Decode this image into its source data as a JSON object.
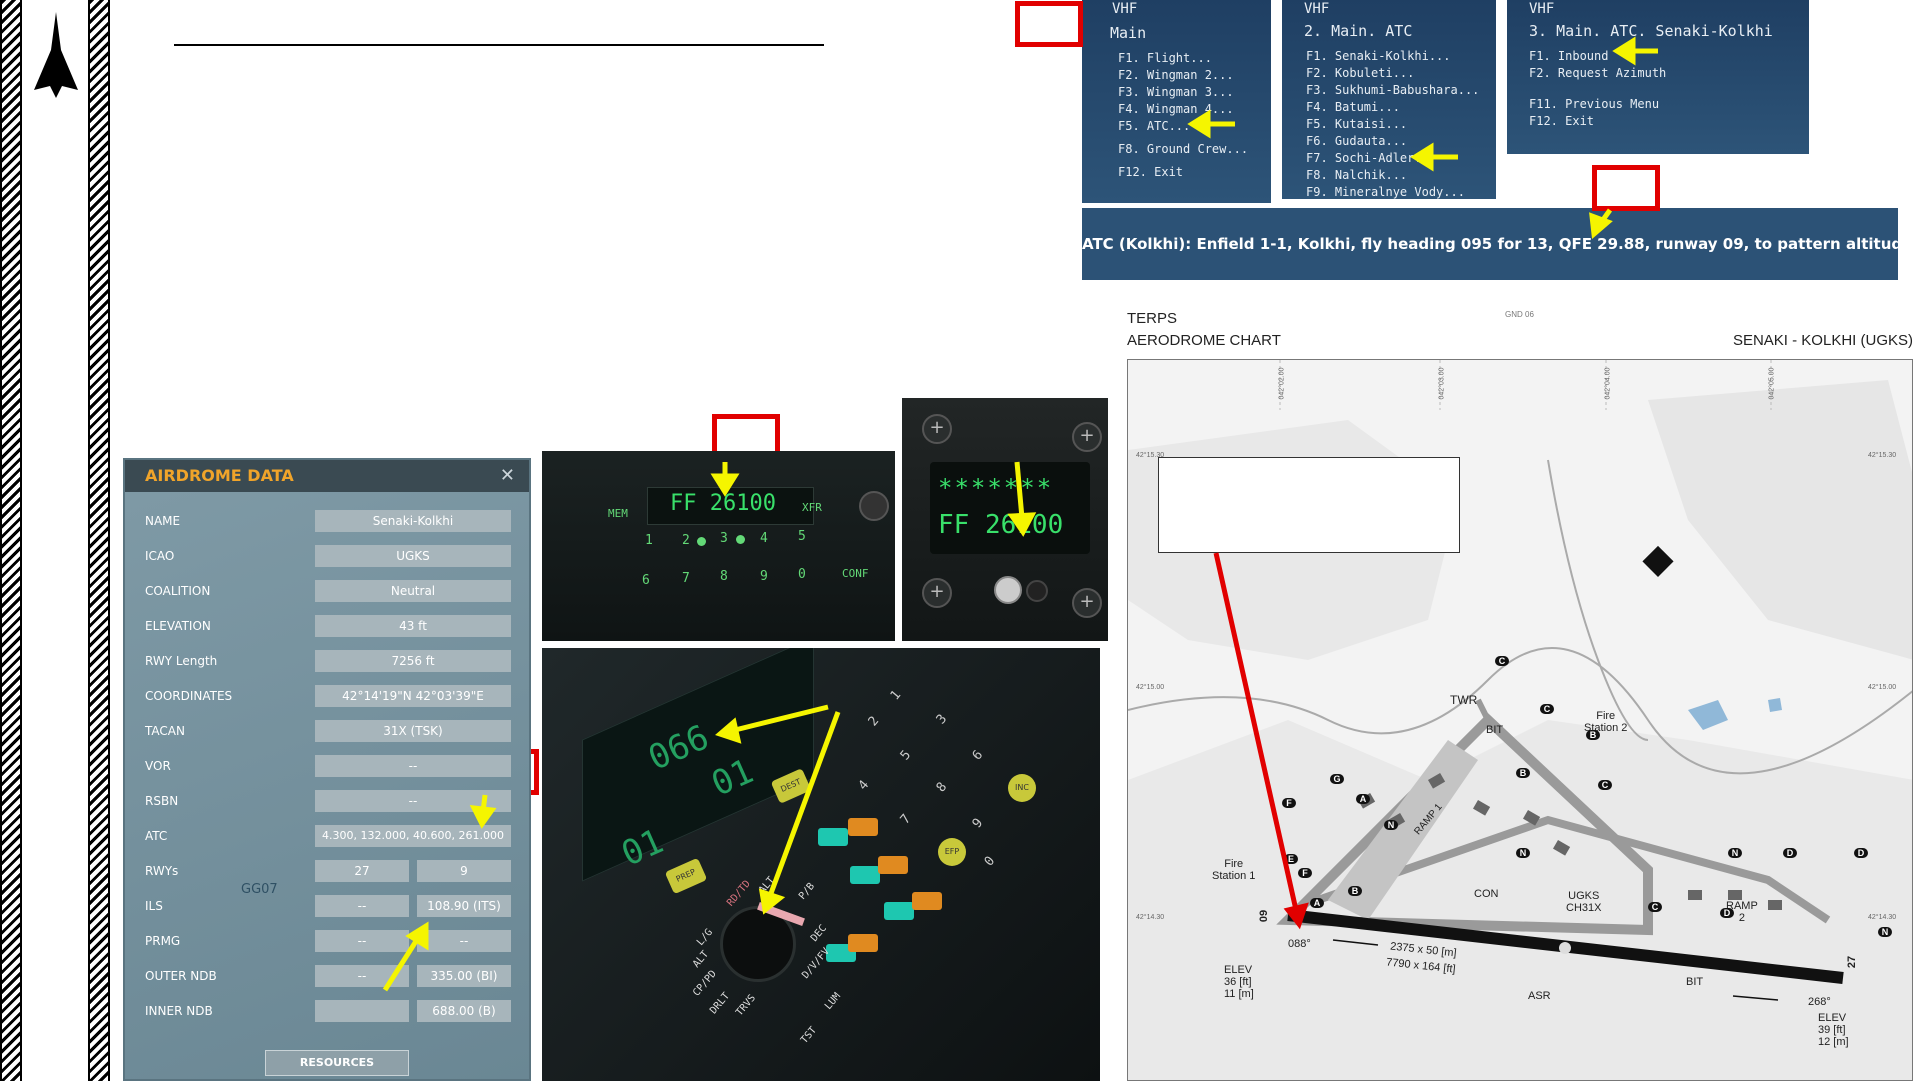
{
  "vhf_main": {
    "title": "VHF",
    "subtitle": "Main",
    "items": [
      "F1. Flight...",
      "F2. Wingman 2...",
      "F3. Wingman 3...",
      "F4. Wingman 4...",
      "F5. ATC...",
      "F8. Ground Crew...",
      "F12. Exit"
    ]
  },
  "vhf_atc": {
    "title": "VHF",
    "subtitle": "2. Main. ATC",
    "items": [
      "F1. Senaki-Kolkhi...",
      "F2. Kobuleti...",
      "F3. Sukhumi-Babushara...",
      "F4. Batumi...",
      "F5. Kutaisi...",
      "F6. Gudauta...",
      "F7. Sochi-Adler...",
      "F8. Nalchik...",
      "F9. Mineralnye Vody..."
    ]
  },
  "vhf_senaki": {
    "title": "VHF",
    "subtitle": "3. Main. ATC. Senaki-Kolkhi",
    "items": [
      "F1. Inbound",
      "F2. Request Azimuth",
      "F11. Previous Menu",
      "F12. Exit"
    ]
  },
  "atc_message": "ATC (Kolkhi): Enfield 1-1, Kolkhi, fly heading 095 for 13, QFE 29.88, runway 09, to pattern altitude",
  "airdrome": {
    "title": "AIRDROME DATA",
    "close": "✕",
    "rows": [
      {
        "label": "NAME",
        "value": "Senaki-Kolkhi"
      },
      {
        "label": "ICAO",
        "value": "UGKS"
      },
      {
        "label": "COALITION",
        "value": "Neutral"
      },
      {
        "label": "ELEVATION",
        "value": "43 ft"
      },
      {
        "label": "RWY Length",
        "value": "7256 ft"
      },
      {
        "label": "COORDINATES",
        "value": "42°14'19\"N 42°03'39\"E"
      },
      {
        "label": "TACAN",
        "value": "31X (TSK)"
      },
      {
        "label": "VOR",
        "value": "--"
      },
      {
        "label": "RSBN",
        "value": "--"
      },
      {
        "label": "ATC",
        "value": "4.300, 132.000, 40.600, 261.000"
      }
    ],
    "split_rows": [
      {
        "label": "RWYs",
        "left": "27",
        "right": "9"
      },
      {
        "label": "ILS",
        "left": "--",
        "right": "108.90 (ITS)"
      },
      {
        "label": "PRMG",
        "left": "--",
        "right": "--"
      },
      {
        "label": "OUTER NDB",
        "left": "--",
        "right": "335.00 (BI)"
      },
      {
        "label": "INNER NDB",
        "left": "",
        "right": "688.00 (B)"
      }
    ],
    "grid_label": "GG07",
    "resources_button": "RESOURCES"
  },
  "ufc_panel": {
    "display": "FF 26100",
    "mem": "MEM",
    "xfr": "XFR",
    "conf": "CONF",
    "keys_top": [
      "1",
      "2",
      "3",
      "4",
      "5"
    ],
    "keys_bottom": [
      "6",
      "7",
      "8",
      "9",
      "0"
    ]
  },
  "display_panel": {
    "line1": "*******",
    "line2": "FF 26100"
  },
  "nav_panel": {
    "big_value": "066",
    "small_value": "01",
    "lower_value": "01",
    "dest": "DEST",
    "prep": "PREP",
    "inc": "INC",
    "efp": "EFP",
    "knob_labels": [
      "L/G",
      "ALT",
      "CP/PD",
      "DRLT",
      "TRVS",
      "RD/TD",
      "ALT",
      "P/B",
      "DEC",
      "D/V/FV",
      "LUM",
      "TST"
    ],
    "keypad": [
      "1",
      "2",
      "3",
      "4",
      "5",
      "6",
      "7",
      "8",
      "9",
      "0"
    ]
  },
  "chart": {
    "terps": "TERPS",
    "title": "AERODROME CHART",
    "airport": "SENAKI - KOLKHI (UGKS)",
    "header_code": "GND 06",
    "lon_ticks": [
      "042°02.00",
      "042°03.00",
      "042°04.00",
      "042°05.00"
    ],
    "lat_ticks": [
      "42°15.30",
      "42°15.00",
      "42°14.30"
    ],
    "twr": "TWR",
    "fire_station_1": "Fire\nStation 1",
    "fire_station_2": "Fire\nStation 2",
    "bit": "BIT",
    "con": "CON",
    "ugks": "UGKS\nCH31X",
    "ramp1": "RAMP 1",
    "ramp2": "RAMP\n2",
    "asr": "ASR",
    "rwy_dims_1": "2375 x 50 [m]",
    "rwy_dims_2": "7790 x 164 [ft]",
    "hdg_west": "088°",
    "hdg_east": "268°",
    "rwy_09": "09",
    "rwy_27": "27",
    "elev_left": "ELEV\n36 [ft]\n11 [m]",
    "elev_right": "ELEV\n39 [ft]\n12 [m]",
    "taxi_labels": [
      "C",
      "C",
      "C",
      "G",
      "A",
      "F",
      "N",
      "B",
      "B",
      "C",
      "D",
      "N",
      "D",
      "N",
      "A",
      "F",
      "B",
      "N",
      "D",
      "E"
    ]
  },
  "colors": {
    "accent_red": "#e10000",
    "arrow_yellow": "#f5f500",
    "lcd_green": "#39e06a",
    "vhf_blue": "#2c5276",
    "airdrome_orange": "#f0a42a"
  }
}
